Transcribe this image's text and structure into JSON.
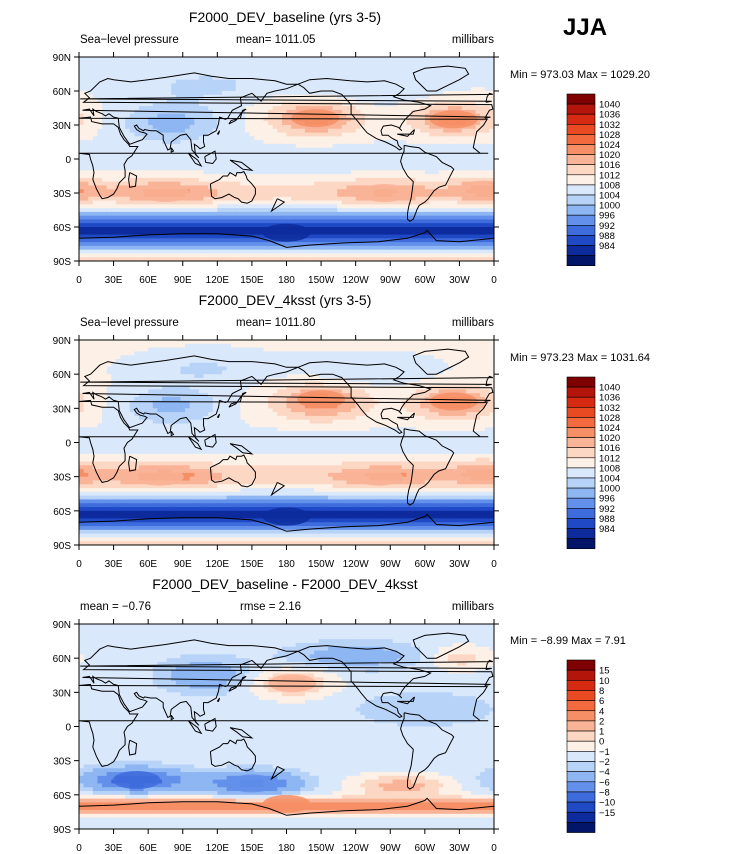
{
  "season": "JJA",
  "lat_labels": [
    "90N",
    "60N",
    "30N",
    "0",
    "30S",
    "60S",
    "90S"
  ],
  "lon_labels": [
    "0",
    "30E",
    "60E",
    "90E",
    "120E",
    "150E",
    "180",
    "150W",
    "120W",
    "90W",
    "60W",
    "30W",
    "0"
  ],
  "chart_data": [
    {
      "type": "heatmap",
      "title": "F2000_DEV_baseline (yrs 3-5)",
      "left_label": "Sea−level pressure",
      "center_label": "mean=  1011.05",
      "right_label": "millibars",
      "stats": "Min = 973.03 Max = 1029.20",
      "xlim": [
        0,
        360
      ],
      "ylim": [
        -90,
        90
      ],
      "levels": [
        "1040",
        "1036",
        "1032",
        "1028",
        "1024",
        "1020",
        "1016",
        "1012",
        "1008",
        "1004",
        "1000",
        "996",
        "992",
        "988",
        "984"
      ],
      "colors": [
        "#7f0000",
        "#b3150b",
        "#d62a12",
        "#ea4a22",
        "#f26a3e",
        "#f68f65",
        "#f9b397",
        "#fcd8c4",
        "#fdf0e6",
        "#dae8fb",
        "#b8d3f8",
        "#8db6f2",
        "#6390ea",
        "#3e6cdc",
        "#1f49c5",
        "#0d2b9c",
        "#031569"
      ],
      "features": [
        {
          "name": "north-pacific-high",
          "lon": 205,
          "lat": 36,
          "value": 1026
        },
        {
          "name": "north-atlantic-high",
          "lon": 325,
          "lat": 35,
          "value": 1026
        },
        {
          "name": "south-indian-high",
          "lon": 75,
          "lat": -30,
          "value": 1022
        },
        {
          "name": "south-atlantic-high",
          "lon": 350,
          "lat": -27,
          "value": 1022
        },
        {
          "name": "south-pacific-high",
          "lon": 265,
          "lat": -30,
          "value": 1021
        },
        {
          "name": "southern-ocean-trough",
          "lon": 180,
          "lat": -65,
          "value": 985
        }
      ]
    },
    {
      "type": "heatmap",
      "title": "F2000_DEV_4ksst (yrs 3-5)",
      "left_label": "Sea−level pressure",
      "center_label": "mean=  1011.80",
      "right_label": "millibars",
      "stats": "Min = 973.23 Max = 1031.64",
      "xlim": [
        0,
        360
      ],
      "ylim": [
        -90,
        90
      ],
      "levels": [
        "1040",
        "1036",
        "1032",
        "1028",
        "1024",
        "1020",
        "1016",
        "1012",
        "1008",
        "1004",
        "1000",
        "996",
        "992",
        "988",
        "984"
      ],
      "colors": [
        "#7f0000",
        "#b3150b",
        "#d62a12",
        "#ea4a22",
        "#f26a3e",
        "#f68f65",
        "#f9b397",
        "#fcd8c4",
        "#fdf0e6",
        "#dae8fb",
        "#b8d3f8",
        "#8db6f2",
        "#6390ea",
        "#3e6cdc",
        "#1f49c5",
        "#0d2b9c",
        "#031569"
      ],
      "features": [
        {
          "name": "north-pacific-high",
          "lon": 210,
          "lat": 38,
          "value": 1027
        },
        {
          "name": "north-atlantic-high",
          "lon": 325,
          "lat": 36,
          "value": 1027
        },
        {
          "name": "south-indian-high",
          "lon": 70,
          "lat": -30,
          "value": 1023
        },
        {
          "name": "south-atlantic-high",
          "lon": 350,
          "lat": -28,
          "value": 1023
        },
        {
          "name": "south-pacific-high",
          "lon": 260,
          "lat": -30,
          "value": 1022
        },
        {
          "name": "southern-ocean-trough",
          "lon": 180,
          "lat": -65,
          "value": 985
        }
      ]
    },
    {
      "type": "heatmap",
      "title": "F2000_DEV_baseline - F2000_DEV_4ksst",
      "left_label": "mean =   −0.76",
      "center_label": "rmse =    2.16",
      "right_label": "millibars",
      "stats": "Min =  −8.99 Max =    7.91",
      "xlim": [
        0,
        360
      ],
      "ylim": [
        -90,
        90
      ],
      "levels": [
        "15",
        "10",
        "8",
        "6",
        "4",
        "2",
        "1",
        "0",
        "−1",
        "−2",
        "−4",
        "−6",
        "−8",
        "−10",
        "−15"
      ],
      "colors": [
        "#7f0000",
        "#b3150b",
        "#d62a12",
        "#ea4a22",
        "#f26a3e",
        "#f68f65",
        "#f9b397",
        "#fcd8c4",
        "#fdf0e6",
        "#dae8fb",
        "#b8d3f8",
        "#8db6f2",
        "#6390ea",
        "#3e6cdc",
        "#1f49c5",
        "#0d2b9c",
        "#031569"
      ],
      "features": [
        {
          "name": "south-indian-low",
          "lon": 50,
          "lat": -47,
          "value": -7
        },
        {
          "name": "south-pacific-low",
          "lon": 150,
          "lat": -50,
          "value": -6
        },
        {
          "name": "antarctic-ring-high",
          "lon": 180,
          "lat": -68,
          "value": 5
        },
        {
          "name": "north-pacific-high",
          "lon": 185,
          "lat": 38,
          "value": 3
        }
      ]
    }
  ]
}
